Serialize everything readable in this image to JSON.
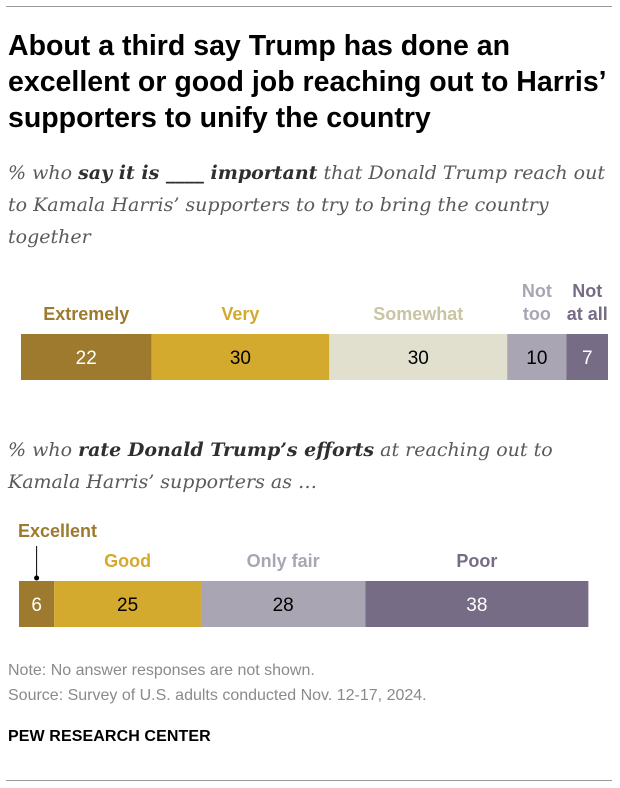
{
  "title": "About a third say Trump has done an excellent or good job reaching out to Harris’ supporters to unify the country",
  "chart1": {
    "subtitle_pre": "% who ",
    "subtitle_bold1": "say it is ____ important",
    "subtitle_post": " that Donald Trump reach out to Kamala Harris’ supporters to try to bring the country together"
  },
  "chart2": {
    "subtitle_pre": "% who ",
    "subtitle_bold1": "rate Donald Trump’s efforts",
    "subtitle_post": " at reaching out to Kamala Harris’ supporters as …"
  },
  "chart_data": [
    {
      "type": "bar",
      "orientation": "horizontal-stacked",
      "title": "",
      "categories": [
        "Extremely",
        "Very",
        "Somewhat",
        "Not too",
        "Not at all"
      ],
      "category_labels": [
        [
          "Extremely"
        ],
        [
          "Very"
        ],
        [
          "Somewhat"
        ],
        [
          "Not",
          "too"
        ],
        [
          "Not",
          "at all"
        ]
      ],
      "values": [
        22,
        30,
        30,
        10,
        7
      ],
      "colors": [
        "#9d7a2e",
        "#d4aa2e",
        "#e1e0cf",
        "#aaa5b3",
        "#776c86"
      ],
      "label_colors": [
        "#9d7a2e",
        "#d4aa2e",
        "#c9c4a3",
        "#aaa5b3",
        "#776c86"
      ],
      "value_text_colors": [
        "#ffffff",
        "#000000",
        "#000000",
        "#000000",
        "#ffffff"
      ],
      "xlim": [
        0,
        100
      ]
    },
    {
      "type": "bar",
      "orientation": "horizontal-stacked",
      "title": "",
      "categories": [
        "Excellent",
        "Good",
        "Only fair",
        "Poor"
      ],
      "category_labels": [
        [
          "Excellent"
        ],
        [
          "Good"
        ],
        [
          "Only fair"
        ],
        [
          "Poor"
        ]
      ],
      "values": [
        6,
        25,
        28,
        38
      ],
      "colors": [
        "#9d7a2e",
        "#d4aa2e",
        "#aaa5b3",
        "#776c86"
      ],
      "label_colors": [
        "#9d7a2e",
        "#d4aa2e",
        "#aaa5b3",
        "#776c86"
      ],
      "value_text_colors": [
        "#ffffff",
        "#000000",
        "#000000",
        "#ffffff"
      ],
      "xlim": [
        0,
        100
      ]
    }
  ],
  "note": "Note: No answer responses are not shown.",
  "source": "Source: Survey of U.S. adults conducted Nov. 12-17, 2024.",
  "brand": "PEW RESEARCH CENTER"
}
